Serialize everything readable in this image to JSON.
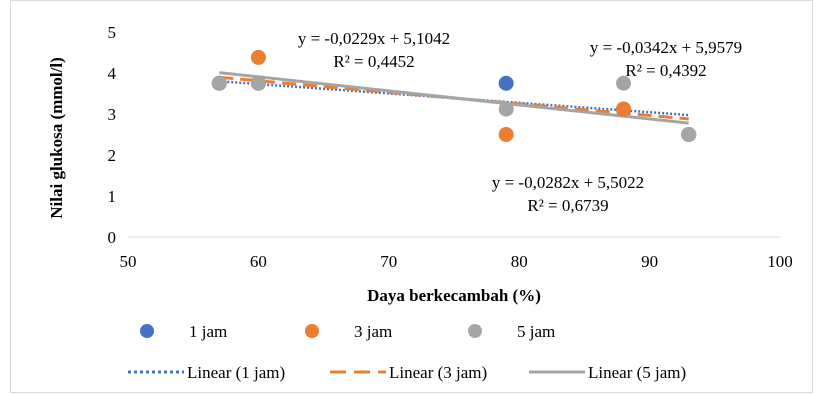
{
  "chart_data": {
    "type": "scatter",
    "xlabel": "Daya berkecambah (%)",
    "ylabel": "Nilai glukosa (mmol/l)",
    "xlim": [
      50,
      100
    ],
    "ylim": [
      0,
      5
    ],
    "xticks": [
      "50",
      "60",
      "70",
      "80",
      "90",
      "100"
    ],
    "yticks": [
      "0",
      "1",
      "2",
      "3",
      "4",
      "5"
    ],
    "grid": false,
    "legend_position": "bottom",
    "series": [
      {
        "name": "1 jam",
        "color": "#4472c4",
        "points": [
          [
            57,
            3.75
          ],
          [
            60,
            3.75
          ],
          [
            79,
            3.75
          ],
          [
            88,
            3.12
          ],
          [
            93,
            2.5
          ]
        ],
        "trend": {
          "name": "Linear (1 jam)",
          "style": "dotted",
          "slope": -0.0229,
          "intercept": 5.1042,
          "equation": "y = -0,0229x + 5,1042",
          "r2": "R² = 0,4452"
        }
      },
      {
        "name": "3 jam",
        "color": "#ed7d31",
        "points": [
          [
            57,
            3.75
          ],
          [
            60,
            4.38
          ],
          [
            79,
            2.5
          ],
          [
            88,
            3.12
          ],
          [
            93,
            2.5
          ]
        ],
        "trend": {
          "name": "Linear (3 jam)",
          "style": "dashed",
          "slope": -0.0282,
          "intercept": 5.5022,
          "equation": "y = -0,0282x + 5,5022",
          "r2": "R² = 0,6739"
        }
      },
      {
        "name": "5 jam",
        "color": "#a5a5a5",
        "points": [
          [
            57,
            3.75
          ],
          [
            60,
            3.75
          ],
          [
            79,
            3.12
          ],
          [
            88,
            3.75
          ],
          [
            93,
            2.5
          ]
        ],
        "trend": {
          "name": "Linear (5 jam)",
          "style": "solid",
          "slope": -0.0342,
          "intercept": 5.9579,
          "equation": "y = -0,0342x + 5,9579",
          "r2": "R² = 0,4392"
        }
      }
    ]
  }
}
